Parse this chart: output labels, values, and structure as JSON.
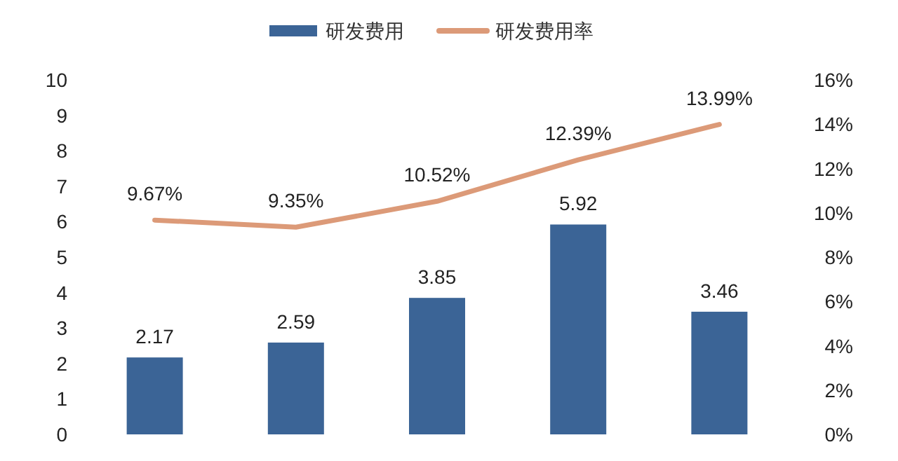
{
  "chart_data": {
    "type": "bar",
    "categories": [
      null,
      null,
      null,
      null,
      null
    ],
    "series": [
      {
        "name": "研发费用",
        "color": "#3b6496",
        "values": [
          2.17,
          2.59,
          3.85,
          5.92,
          3.46
        ],
        "value_labels": [
          "2.17",
          "2.59",
          "3.85",
          "5.92",
          "3.46"
        ]
      },
      {
        "name": "研发费用率",
        "type": "line",
        "axis": "y2",
        "color": "#dc9a78",
        "values": [
          9.67,
          9.35,
          10.52,
          12.39,
          13.99
        ],
        "value_labels": [
          "9.67%",
          "9.35%",
          "10.52%",
          "12.39%",
          "13.99%"
        ]
      }
    ],
    "ylim": [
      0,
      10
    ],
    "yticks": [
      0,
      1,
      2,
      3,
      4,
      5,
      6,
      7,
      8,
      9,
      10
    ],
    "y2lim": [
      0,
      16
    ],
    "y2ticks": [
      {
        "value": 0,
        "label": "0%"
      },
      {
        "value": 2,
        "label": "2%"
      },
      {
        "value": 4,
        "label": "4%"
      },
      {
        "value": 6,
        "label": "6%"
      },
      {
        "value": 8,
        "label": "8%"
      },
      {
        "value": 10,
        "label": "10%"
      },
      {
        "value": 12,
        "label": "12%"
      },
      {
        "value": 14,
        "label": "14%"
      },
      {
        "value": 16,
        "label": "16%"
      }
    ],
    "legend": "top",
    "tick_labels": "y",
    "marker": "none",
    "line_style": "solid"
  }
}
